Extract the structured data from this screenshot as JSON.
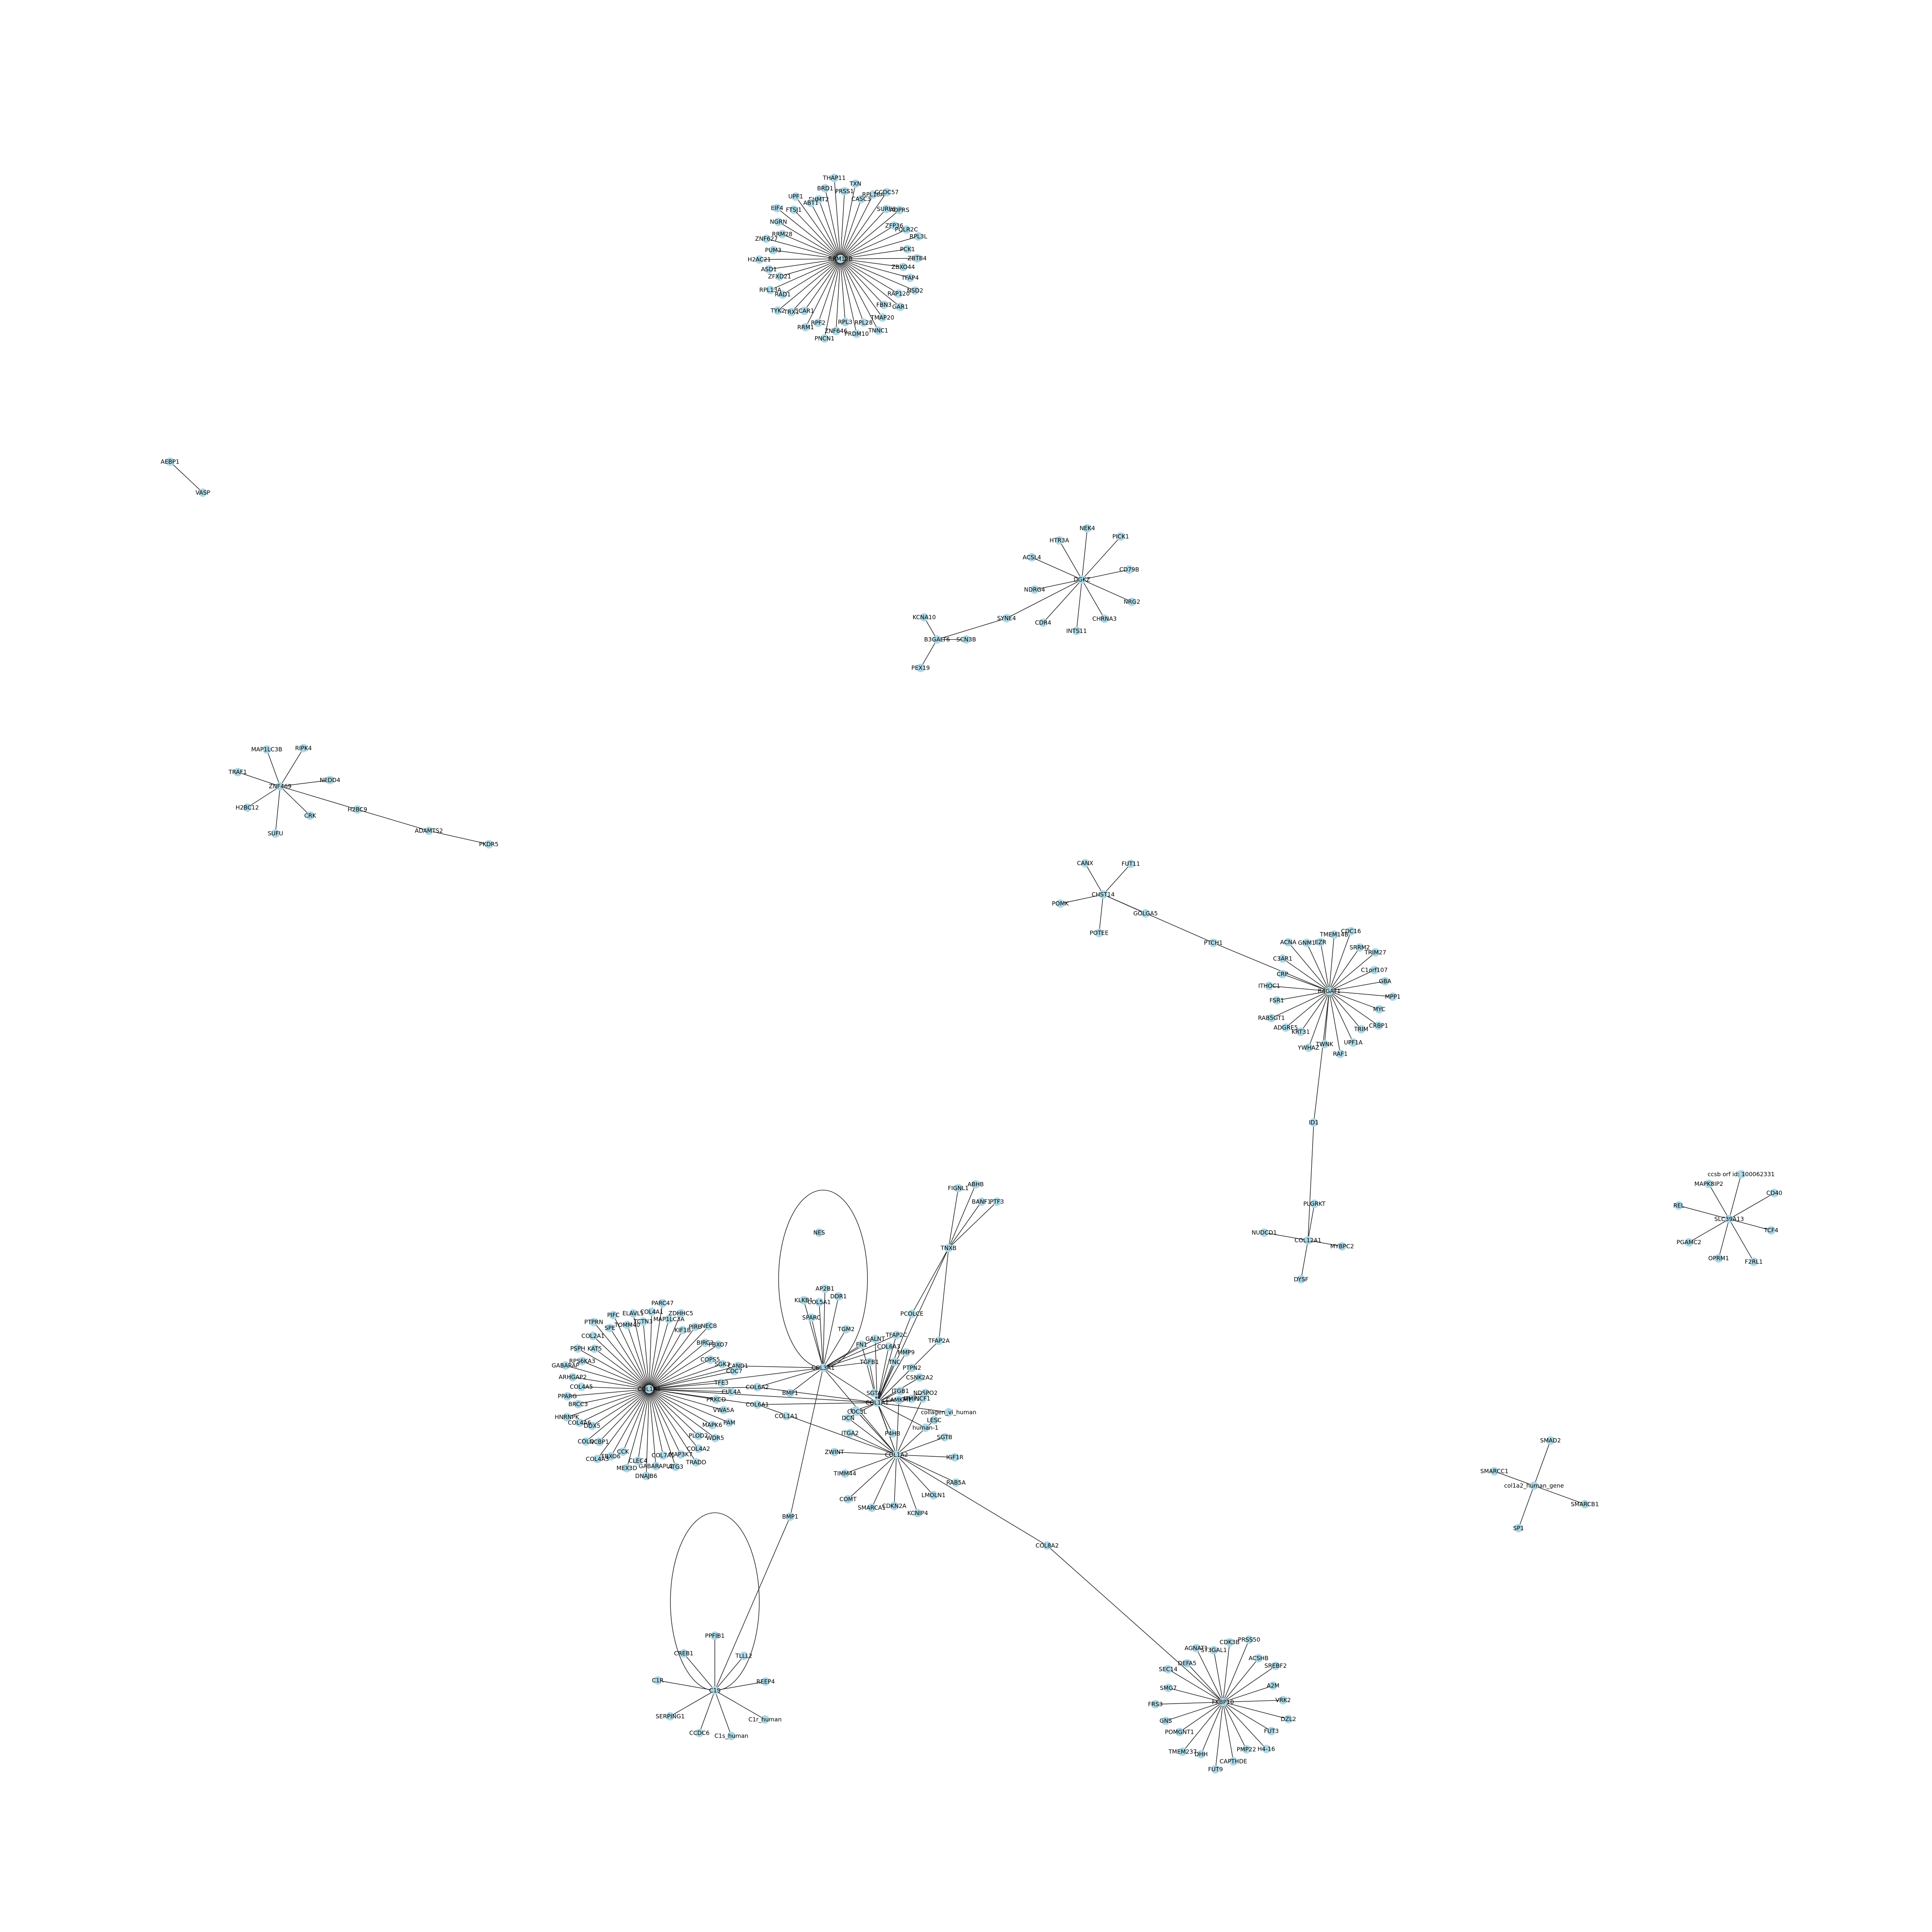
{
  "colors": {
    "node": "#add8e6",
    "edge": "#222222",
    "label": "#000000",
    "background": "#ffffff"
  },
  "nodes": [
    "EHMT2",
    "BRD1",
    "THAP11",
    "PRSS1",
    "TXN",
    "CASC3",
    "RPL18A",
    "CCDC57",
    "SURF6",
    "ADPRS",
    "ZFP36",
    "POLR2C",
    "RPL3L",
    "PCK1",
    "ZBTB4",
    "ZBXO44",
    "TFAP4",
    "NSD2",
    "RAP120",
    "GAR1",
    "FBN3",
    "TMAP20",
    "TNNC1",
    "RPL28",
    "PRDM10",
    "RPL3",
    "ZNF646",
    "PNCN1",
    "RPF2",
    "RRM12B",
    "RRM1",
    "CCAR1",
    "TRX1",
    "TYK2",
    "RAD1",
    "RPL13A",
    "ZFXD21",
    "ASD1",
    "H2AC21",
    "PUM3",
    "ZNF627",
    "RRM28",
    "NGRN",
    "EIF4",
    "FTSJ1",
    "UPF1",
    "ABT1",
    "AEBP1",
    "VASP",
    "HTR3A",
    "NEK4",
    "PICK1",
    "CD79B",
    "NRG2",
    "CHRNA3",
    "INTS11",
    "DGKZ",
    "CDR4",
    "NDRG4",
    "ACSL4",
    "KCNA10",
    "SCN3B",
    "B3GALT6",
    "SYNE4",
    "PEX19",
    "MAP1LC3B",
    "RIPK4",
    "NEDD4",
    "CRK",
    "SUFU",
    "ZNF469",
    "H2BC12",
    "TRAF1",
    "H2BC9",
    "ADAMTS2",
    "PKDR5",
    "CANX",
    "FUT11",
    "GOLGA5",
    "POTEE",
    "POMK",
    "CHST14",
    "PTCH1",
    "EZR",
    "TMEM14B",
    "CDC16",
    "SRRM2",
    "TRIM27",
    "C1orf107",
    "GBA",
    "MPP1",
    "MYC",
    "CRBP1",
    "TRIM",
    "UPF1A",
    "RAF1",
    "TWNK",
    "B4GAT1",
    "YWHAZ",
    "KRT31",
    "ADGRE5",
    "RAB5GT1",
    "FSR1",
    "ITHOC1",
    "CRP",
    "C3AR1",
    "ACNA",
    "GNM1",
    "ID1",
    "MAPK8IP2",
    "ccsb orf id: 100062331",
    "CD40",
    "TCF4",
    "SLC39A13",
    "F2RL1",
    "OPRM1",
    "PGAMC2",
    "REL",
    "COL12A1",
    "MYBPC2",
    "DYSF",
    "NUDCD1",
    "PLGRKT",
    "SMARCC1",
    "SMAD2",
    "col1a2_human_gene",
    "SMARCB1",
    "SP1",
    "FIGNL1",
    "ABHB",
    "BANF1",
    "PTF3",
    "TNXB",
    "NES",
    "AP2B1",
    "KLKB1",
    "COL5A1",
    "DDR1",
    "SPARC",
    "PCOLCE",
    "TGM2",
    "TFAP2A",
    "FN1",
    "GALNT",
    "TFAP2C",
    "COL6A3",
    "TGFB1",
    "MMP9",
    "CAND1",
    "COL3A1",
    "PTPN2",
    "TNC",
    "CSNK2A2",
    "BMP1",
    "COL6A2",
    "COL6A1",
    "COL1A1",
    "COL1A2",
    "LOX",
    "DCN",
    "MMP2",
    "NDSPO2",
    "collagen_vi_human",
    "human-1",
    "P4HB",
    "ITGB1",
    "SGTB",
    "IGF1R",
    "RAB5A",
    "LMOLN1",
    "KCNIP4",
    "CDKN2A",
    "SMARCA1",
    "COMT",
    "TIMM44",
    "ZWINT",
    "ITGA2",
    "CDC5L",
    "SGTA",
    "CAMKMT",
    "NCF1",
    "COL8A2",
    "LESC",
    "TCTN3",
    "COL4A1",
    "PARC47",
    "MAP1LC3A",
    "ZDHHC5",
    "KIF1B",
    "PIRB",
    "NECB",
    "BIRC2",
    "FBXO7",
    "COPS5",
    "SGK3",
    "CDC7",
    "TFE3",
    "CUL4A",
    "PRKCD",
    "VWA5A",
    "PAM",
    "MAPK6",
    "WDR5",
    "PLOD2",
    "COL4A2",
    "TRADD",
    "MAP3K7",
    "ATG3",
    "COL7A1",
    "GABARAPL1",
    "COL1A1b",
    "DNAJB6",
    "CLEC4",
    "MEX3D",
    "CCK",
    "FBXO6",
    "COL4A3",
    "NCBP1",
    "COLQ",
    "DDX5",
    "COL4A6",
    "HNRNPK",
    "BRCC3",
    "PPARG",
    "COL4A5",
    "ARHGAP2",
    "GABARAP",
    "RPS6KA3",
    "PSPH",
    "KAT5",
    "COL2A1",
    "PTPRN",
    "SPE",
    "PIFC",
    "TOMM40",
    "ELAVL1",
    "C1S",
    "CCDC6",
    "SERPING1",
    "C1R",
    "CREB1",
    "PPFIB1",
    "TLLL2",
    "REEP4",
    "C1r_human",
    "C1s_human",
    "ST3GAL1",
    "CDK3B",
    "PRSS50",
    "ACSHB",
    "FKBP10",
    "SREBF2",
    "A2M",
    "VRK2",
    "DZL2",
    "FUT3",
    "H4-16",
    "PMP22",
    "CAPTHDE",
    "FUT9",
    "DHH",
    "TMEM237",
    "POMGNT1",
    "GNS",
    "FRS3",
    "SMG7",
    "SEC14",
    "DEFA5",
    "AGNAT1"
  ]
}
